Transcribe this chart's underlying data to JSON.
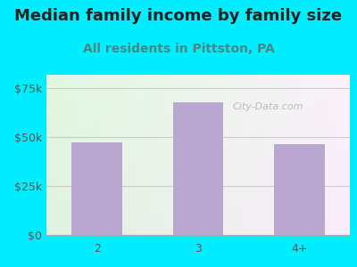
{
  "title": "Median family income by family size",
  "subtitle": "All residents in Pittston, PA",
  "categories": [
    "2",
    "3",
    "4+"
  ],
  "values": [
    47500,
    68000,
    46500
  ],
  "bar_color": "#b8a8d0",
  "background_outer": "#00eeff",
  "yticks": [
    0,
    25000,
    50000,
    75000
  ],
  "ytick_labels": [
    "$0",
    "$25k",
    "$50k",
    "$75k"
  ],
  "ylim": [
    0,
    82000
  ],
  "title_fontsize": 13,
  "subtitle_fontsize": 10,
  "tick_fontsize": 9,
  "title_color": "#222222",
  "subtitle_color": "#448888",
  "tick_color": "#555555",
  "watermark": "City-Data.com",
  "grid_color": "#cccccc"
}
